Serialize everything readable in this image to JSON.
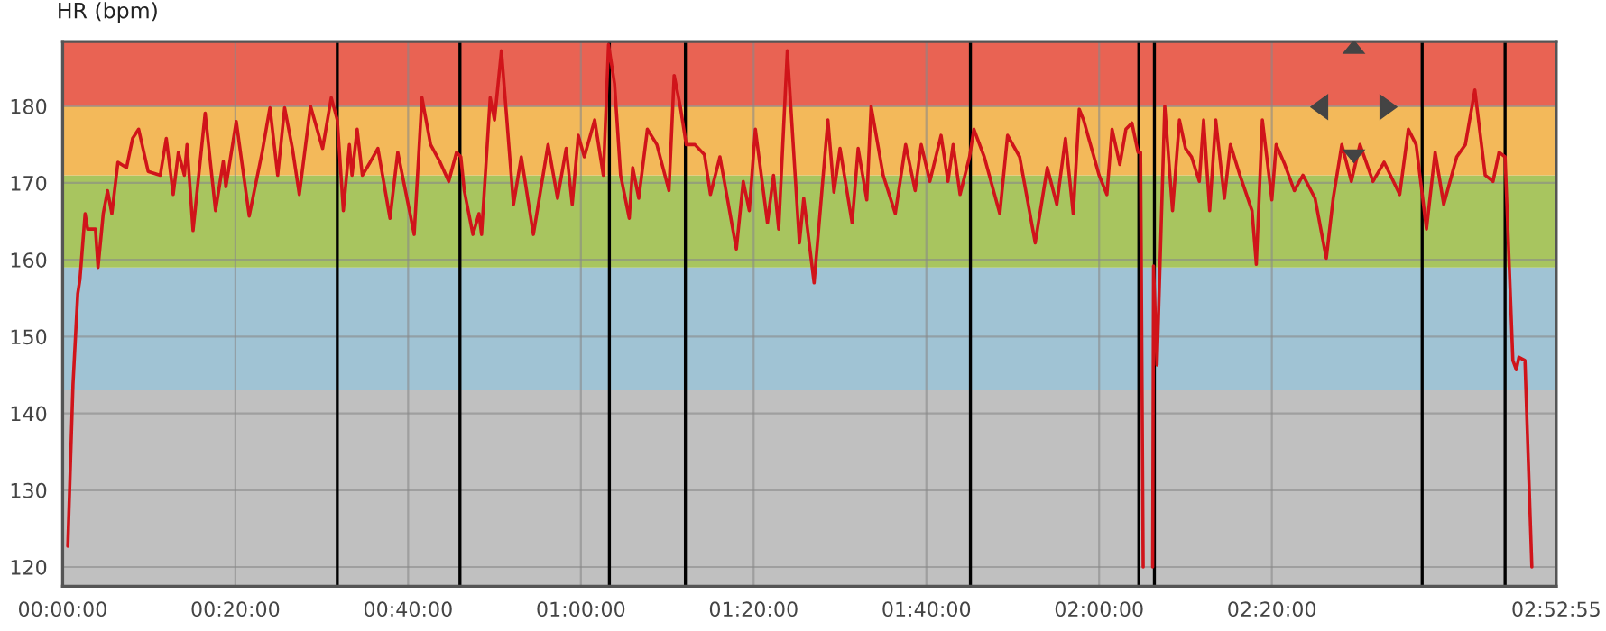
{
  "chart_data": {
    "type": "line",
    "ylabel": "HR (bpm)",
    "x": [
      0.6,
      1.2,
      1.75,
      2.0,
      2.6,
      2.9,
      3.8,
      4.1,
      4.7,
      5.2,
      5.7,
      6.4,
      7.4,
      8.1,
      8.8,
      9.9,
      11.3,
      12.0,
      12.8,
      13.4,
      14.1,
      14.4,
      15.1,
      16.5,
      17.7,
      18.6,
      18.9,
      20.1,
      21.6,
      23.1,
      24.0,
      24.9,
      25.7,
      26.6,
      27.4,
      28.7,
      30.1,
      31.1,
      31.8,
      32.5,
      33.2,
      33.5,
      34.1,
      34.7,
      35.6,
      36.5,
      37.9,
      38.8,
      40.7,
      41.6,
      42.6,
      43.7,
      44.7,
      45.6,
      46.1,
      46.5,
      47.5,
      48.2,
      48.5,
      49.5,
      50.0,
      50.8,
      52.2,
      53.1,
      54.5,
      56.2,
      57.3,
      58.3,
      59.0,
      59.7,
      60.4,
      61.6,
      62.6,
      63.2,
      63.9,
      64.6,
      65.6,
      66.0,
      66.7,
      67.7,
      68.8,
      70.2,
      70.8,
      71.5,
      72.2,
      73.2,
      74.3,
      75.0,
      76.1,
      78.0,
      78.8,
      79.5,
      80.2,
      81.6,
      82.3,
      82.9,
      83.9,
      85.3,
      85.8,
      87.0,
      88.6,
      89.3,
      90.0,
      91.4,
      92.1,
      93.1,
      93.6,
      95.0,
      96.4,
      97.6,
      98.7,
      99.4,
      100.4,
      101.7,
      102.5,
      103.1,
      103.9,
      105.0,
      105.5,
      106.7,
      108.5,
      109.4,
      110.8,
      112.6,
      114.0,
      115.1,
      116.1,
      117.0,
      117.7,
      118.2,
      120.0,
      120.9,
      121.5,
      122.4,
      123.1,
      123.8,
      124.5,
      124.8,
      125.1,
      125.6,
      126.2,
      126.3,
      126.7,
      127.6,
      128.5,
      129.3,
      130.0,
      130.7,
      131.6,
      132.1,
      132.8,
      133.5,
      134.5,
      135.2,
      136.3,
      137.7,
      138.2,
      138.9,
      140.0,
      140.5,
      141.5,
      142.6,
      143.6,
      145.0,
      146.3,
      147.1,
      148.1,
      149.2,
      150.2,
      151.7,
      153.0,
      154.8,
      155.8,
      156.7,
      157.9,
      158.9,
      159.9,
      161.4,
      162.4,
      163.5,
      164.7,
      165.6,
      166.3,
      167.0,
      167.9,
      168.3,
      168.6,
      169.3,
      170.1
    ],
    "series": [
      {
        "color": "#d0141a",
        "values": [
          122.7,
          143.8,
          155.6,
          157.4,
          166,
          164,
          164,
          159,
          166,
          169,
          166,
          172.7,
          172,
          175.8,
          177,
          171.5,
          171,
          175.8,
          168.5,
          174,
          171,
          175,
          163.8,
          179.1,
          166.4,
          172.8,
          169.5,
          178,
          165.7,
          174,
          179.8,
          171,
          179.8,
          174.5,
          168.5,
          180,
          174.5,
          181.1,
          178.2,
          166.4,
          175,
          171,
          177,
          171,
          172.7,
          174.5,
          165.4,
          174,
          163.3,
          181.1,
          175,
          172.7,
          170.2,
          174,
          173.4,
          169,
          163.3,
          166,
          163.3,
          181.1,
          178.2,
          187.2,
          167.2,
          173.4,
          163.3,
          175,
          168,
          174.5,
          167.2,
          176.2,
          173.4,
          178.2,
          171,
          188,
          182.9,
          171,
          165.4,
          172,
          168,
          177,
          175,
          169,
          184,
          180,
          175,
          175,
          173.7,
          168.5,
          173.4,
          161.4,
          170.2,
          166.4,
          177,
          164.8,
          171,
          164,
          187.2,
          162.2,
          168,
          157,
          178.2,
          168.8,
          174.5,
          164.8,
          174.5,
          167.8,
          180,
          171,
          166,
          175,
          169,
          175,
          170.2,
          176.2,
          170.2,
          175,
          168.5,
          173.4,
          177,
          173.4,
          166,
          176.2,
          173.4,
          162.2,
          172,
          167.2,
          175.8,
          166,
          179.6,
          178.2,
          171,
          168.5,
          177,
          172.4,
          177,
          177.8,
          174,
          174,
          120,
          null,
          120,
          159.2,
          146.3,
          180,
          166.4,
          178.2,
          174.5,
          173.4,
          170.2,
          178.2,
          166.4,
          178.2,
          168,
          175,
          171,
          166.4,
          159.4,
          178.2,
          167.8,
          175,
          172.4,
          169,
          171,
          168,
          160.2,
          168,
          175,
          170.2,
          175,
          170.2,
          172.7,
          168.5,
          177,
          175,
          164,
          174,
          167.2,
          173.4,
          175,
          182.1,
          171,
          170.2,
          174,
          173.4,
          146.9,
          145.7,
          147.3,
          146.9,
          120
        ]
      }
    ],
    "xlim": [
      0,
      172.92
    ],
    "xticks": [
      {
        "value": 0,
        "label": "00:00:00"
      },
      {
        "value": 20,
        "label": "00:20:00"
      },
      {
        "value": 40,
        "label": "00:40:00"
      },
      {
        "value": 60,
        "label": "01:00:00"
      },
      {
        "value": 80,
        "label": "01:20:00"
      },
      {
        "value": 100,
        "label": "01:40:00"
      },
      {
        "value": 120,
        "label": "02:00:00"
      },
      {
        "value": 140,
        "label": "02:20:00"
      },
      {
        "value": 172.92,
        "label": "02:52:55"
      }
    ],
    "ylim": [
      117.5,
      188.4
    ],
    "yticks": [
      120,
      130,
      140,
      150,
      160,
      170,
      180
    ],
    "bands": [
      {
        "axis": "y",
        "from": 117.5,
        "to": 143,
        "color": "#c0c0c0"
      },
      {
        "axis": "y",
        "from": 143,
        "to": 159,
        "color": "#a0c3d4"
      },
      {
        "axis": "y",
        "from": 159,
        "to": 171,
        "color": "#a8c55f"
      },
      {
        "axis": "y",
        "from": 171,
        "to": 180,
        "color": "#f3b95a"
      },
      {
        "axis": "y",
        "from": 180,
        "to": 188.4,
        "color": "#e96353"
      }
    ],
    "ref_lines": [
      {
        "axis": "x",
        "value": 31.8,
        "color": "#000000"
      },
      {
        "axis": "x",
        "value": 46.0,
        "color": "#000000"
      },
      {
        "axis": "x",
        "value": 63.3,
        "color": "#000000"
      },
      {
        "axis": "x",
        "value": 72.1,
        "color": "#000000"
      },
      {
        "axis": "x",
        "value": 105.1,
        "color": "#000000"
      },
      {
        "axis": "x",
        "value": 124.6,
        "color": "#000000"
      },
      {
        "axis": "x",
        "value": 126.4,
        "color": "#000000"
      },
      {
        "axis": "x",
        "value": 157.4,
        "color": "#000000"
      },
      {
        "axis": "x",
        "value": 167.0,
        "color": "#000000"
      }
    ],
    "grid": true,
    "marker": "none",
    "line_style": "solid"
  }
}
